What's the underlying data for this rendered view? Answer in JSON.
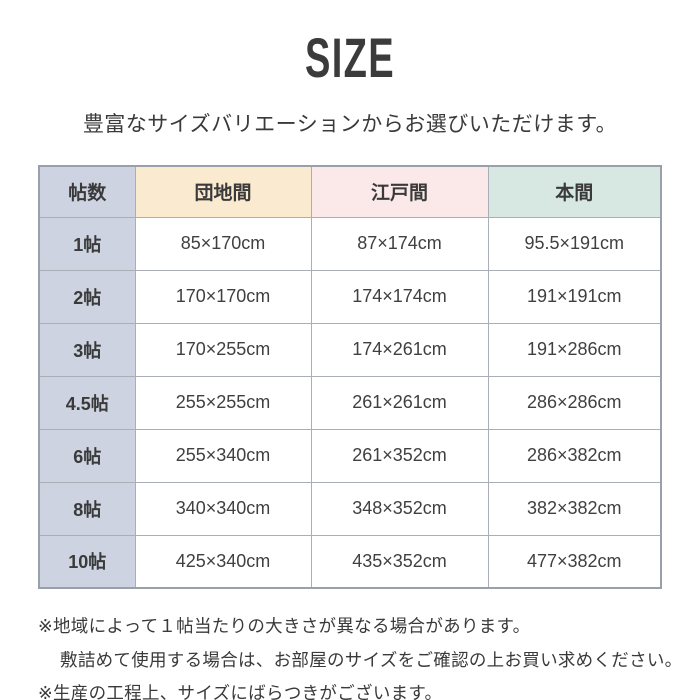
{
  "page": {
    "title": "SIZE",
    "subtitle": "豊富なサイズバリエーションからお選びいただけます。"
  },
  "table": {
    "headers": [
      "帖数",
      "団地間",
      "江戸間",
      "本間"
    ],
    "header_colors": {
      "josu": "#cdd3e0",
      "danchima": "#faeacf",
      "edoma": "#fbe8e8",
      "honma": "#d7e8e2"
    },
    "rows": [
      [
        "1帖",
        "85×170cm",
        "87×174cm",
        "95.5×191cm"
      ],
      [
        "2帖",
        "170×170cm",
        "174×174cm",
        "191×191cm"
      ],
      [
        "3帖",
        "170×255cm",
        "174×261cm",
        "191×286cm"
      ],
      [
        "4.5帖",
        "255×255cm",
        "261×261cm",
        "286×286cm"
      ],
      [
        "6帖",
        "255×340cm",
        "261×352cm",
        "286×382cm"
      ],
      [
        "8帖",
        "340×340cm",
        "348×352cm",
        "382×382cm"
      ],
      [
        "10帖",
        "425×340cm",
        "435×352cm",
        "477×382cm"
      ]
    ]
  },
  "notes": [
    "※地域によって１帖当たりの大きさが異なる場合があります。",
    "敷詰めて使用する場合は、お部屋のサイズをご確認の上お買い求めください。",
    "※生産の工程上、サイズにばらつきがございます。"
  ]
}
